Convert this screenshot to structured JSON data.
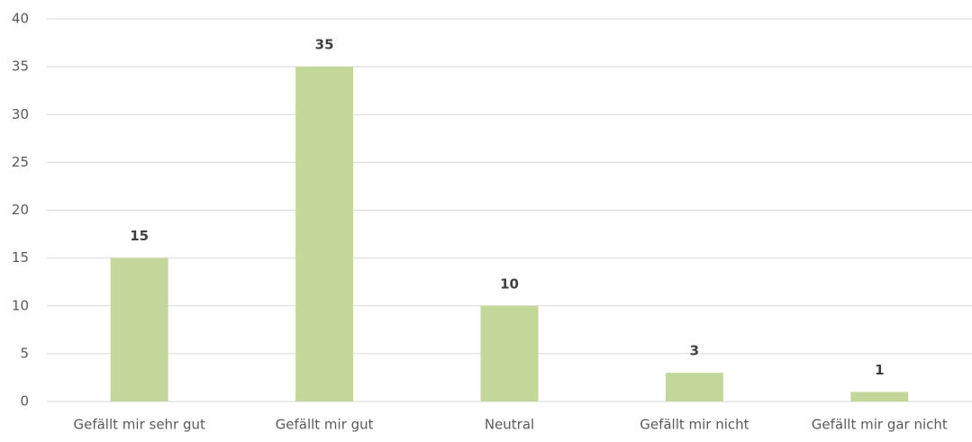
{
  "chart_data": {
    "type": "bar",
    "categories": [
      "Gefällt mir sehr gut",
      "Gefällt mir gut",
      "Neutral",
      "Gefällt mir nicht",
      "Gefällt mir gar nicht"
    ],
    "values": [
      15,
      35,
      10,
      3,
      1
    ],
    "color": "#c4d79b",
    "ylim": [
      0,
      40
    ],
    "yticks": [
      0,
      5,
      10,
      15,
      20,
      25,
      30,
      35,
      40
    ],
    "grid": true
  }
}
